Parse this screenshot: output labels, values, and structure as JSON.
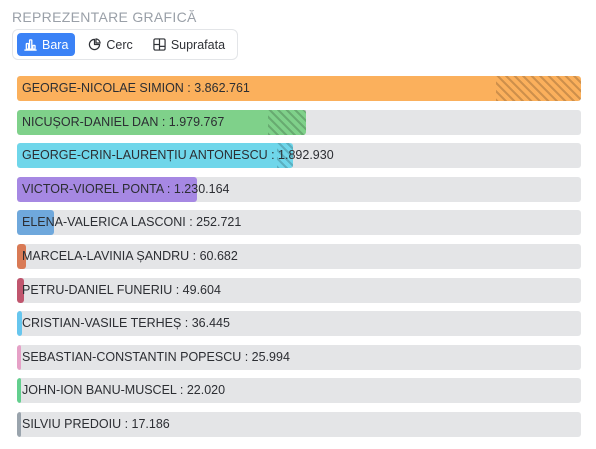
{
  "section_title": "REPREZENTARE GRAFICĂ",
  "toggle": {
    "options": [
      {
        "label": "Bara",
        "icon": "bar-chart-icon",
        "active": true
      },
      {
        "label": "Cerc",
        "icon": "pie-chart-icon",
        "active": false
      },
      {
        "label": "Suprafata",
        "icon": "treemap-icon",
        "active": false
      }
    ],
    "active_color": "#3b82f6"
  },
  "chart_data": {
    "type": "bar",
    "orientation": "horizontal",
    "title": "",
    "xlabel": "",
    "ylabel": "",
    "categories": [
      "GEORGE-NICOLAE SIMION",
      "NICUȘOR-DANIEL DAN",
      "GEORGE-CRIN-LAURENȚIU ANTONESCU",
      "VICTOR-VIOREL PONTA",
      "ELENA-VALERICA LASCONI",
      "MARCELA-LAVINIA ȘANDRU",
      "PETRU-DANIEL FUNERIU",
      "CRISTIAN-VASILE TERHEȘ",
      "SEBASTIAN-CONSTANTIN POPESCU",
      "JOHN-ION BANU-MUSCEL",
      "SILVIU PREDOIU"
    ],
    "values": [
      3862761,
      1979767,
      1892930,
      1230164,
      252721,
      60682,
      49604,
      36445,
      25994,
      22020,
      17186
    ],
    "value_labels": [
      "3.862.761",
      "1.979.767",
      "1.892.930",
      "1.230.164",
      "252.721",
      "60.682",
      "49.604",
      "36.445",
      "25.994",
      "22.020",
      "17.186"
    ],
    "label_separator": " : ",
    "hatched_fraction": [
      0.15,
      0.13,
      0.06,
      0.0,
      0.0,
      0.0,
      0.0,
      0.0,
      0.0,
      0.0,
      0.0
    ],
    "colors": [
      "#fbb05c",
      "#7fd18a",
      "#6fd6ea",
      "#a688e3",
      "#6fa8dc",
      "#d97a55",
      "#c0566e",
      "#67c6ee",
      "#e6a1c7",
      "#63cf8e",
      "#9aa4ad"
    ],
    "track_color": "#e4e5e7",
    "xlim": [
      0,
      3862761
    ]
  }
}
